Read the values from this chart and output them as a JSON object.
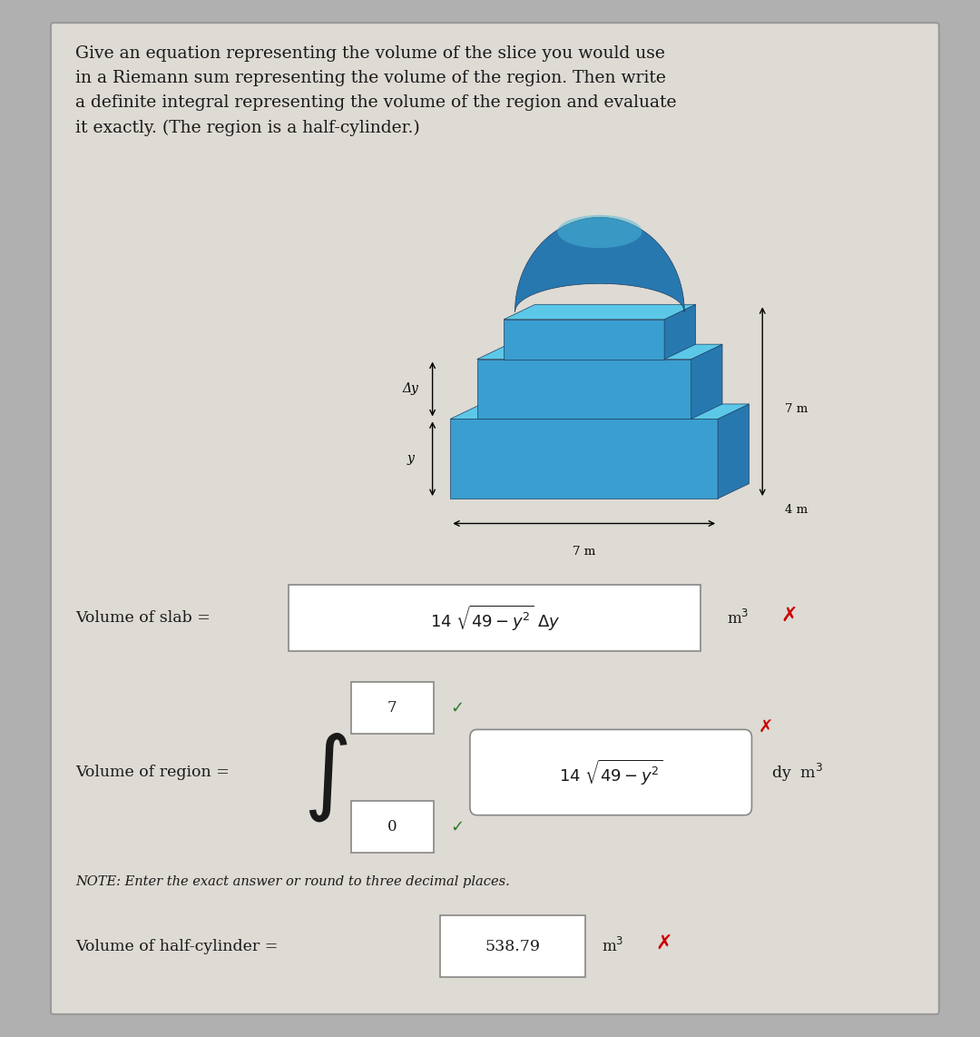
{
  "bg_outer": "#b0b0b0",
  "bg_card": "#dedad4",
  "text_color": "#1a1a1a",
  "red_color": "#cc0000",
  "green_color": "#2d7a2d",
  "title_text": "Give an equation representing the volume of the slice you would use\nin a Riemann sum representing the volume of the region. Then write\na definite integral representing the volume of the region and evaluate\nit exactly. (The region is a half-cylinder.)",
  "note_text": "NOTE: Enter the exact answer or round to three decimal places.",
  "vol_slab_label": "Volume of slab = ",
  "vol_region_label": "Volume of region = ",
  "vol_cylinder_label": "Volume of half-cylinder = ",
  "vol_cylinder_value": "538.79",
  "upper_limit": "7",
  "lower_limit": "0",
  "m3_label": "m$^3$",
  "dim_7m_horiz": "7 m",
  "dim_7m_vert": "7 m",
  "dim_4m": "4 m",
  "delta_y_label": "Δy",
  "y_label": "y",
  "blue_top": "#5cc8e8",
  "blue_side": "#2878b0",
  "blue_front": "#3a9ed0",
  "blue_dome": "#2878b0",
  "blue_dome_top": "#4ab8d8"
}
